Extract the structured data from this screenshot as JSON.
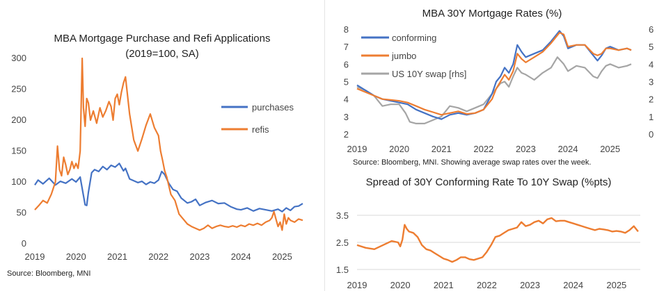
{
  "chart_data": [
    {
      "type": "line",
      "title": "MBA Mortgage Purchase and Refi Applications",
      "subtitle": "(2019=100, SA)",
      "x_ticks": [
        "2019",
        "2020",
        "2021",
        "2022",
        "2023",
        "2024",
        "2025"
      ],
      "y_ticks": [
        "0",
        "50",
        "100",
        "150",
        "200",
        "250",
        "300"
      ],
      "ylim": [
        0,
        300
      ],
      "xlim": [
        2019.0,
        2025.55
      ],
      "grid": false,
      "legend": "right",
      "note": "Source: Bloomberg, MNI",
      "series": [
        {
          "name": "purchases",
          "color": "#4472C4",
          "x": [
            2019.0,
            2019.08,
            2019.2,
            2019.35,
            2019.5,
            2019.62,
            2019.75,
            2019.9,
            2020.0,
            2020.1,
            2020.18,
            2020.22,
            2020.26,
            2020.3,
            2020.38,
            2020.45,
            2020.55,
            2020.65,
            2020.75,
            2020.85,
            2020.95,
            2021.05,
            2021.15,
            2021.2,
            2021.3,
            2021.4,
            2021.5,
            2021.6,
            2021.7,
            2021.8,
            2021.9,
            2022.0,
            2022.08,
            2022.15,
            2022.25,
            2022.35,
            2022.45,
            2022.55,
            2022.7,
            2022.8,
            2022.9,
            2023.0,
            2023.15,
            2023.3,
            2023.45,
            2023.6,
            2023.75,
            2023.9,
            2024.0,
            2024.15,
            2024.3,
            2024.45,
            2024.6,
            2024.75,
            2024.9,
            2025.0,
            2025.1,
            2025.2,
            2025.3,
            2025.4,
            2025.5
          ],
          "values": [
            95,
            103,
            97,
            106,
            95,
            101,
            98,
            105,
            100,
            108,
            78,
            63,
            62,
            83,
            115,
            120,
            117,
            125,
            120,
            127,
            124,
            130,
            118,
            122,
            105,
            102,
            99,
            101,
            96,
            100,
            98,
            103,
            117,
            112,
            98,
            88,
            85,
            74,
            66,
            68,
            72,
            62,
            67,
            70,
            65,
            66,
            60,
            56,
            55,
            58,
            53,
            57,
            55,
            53,
            56,
            52,
            58,
            54,
            60,
            61,
            65
          ]
        },
        {
          "name": "refis",
          "color": "#ED7D31",
          "x": [
            2019.0,
            2019.1,
            2019.2,
            2019.3,
            2019.4,
            2019.5,
            2019.55,
            2019.6,
            2019.65,
            2019.7,
            2019.75,
            2019.8,
            2019.85,
            2019.9,
            2019.95,
            2020.0,
            2020.05,
            2020.1,
            2020.15,
            2020.18,
            2020.22,
            2020.26,
            2020.3,
            2020.35,
            2020.42,
            2020.5,
            2020.58,
            2020.65,
            2020.72,
            2020.8,
            2020.85,
            2020.9,
            2020.95,
            2021.0,
            2021.05,
            2021.1,
            2021.15,
            2021.2,
            2021.3,
            2021.4,
            2021.5,
            2021.6,
            2021.7,
            2021.8,
            2021.9,
            2022.0,
            2022.05,
            2022.1,
            2022.15,
            2022.2,
            2022.3,
            2022.4,
            2022.5,
            2022.6,
            2022.7,
            2022.8,
            2022.9,
            2023.0,
            2023.1,
            2023.2,
            2023.3,
            2023.4,
            2023.5,
            2023.6,
            2023.7,
            2023.8,
            2023.9,
            2024.0,
            2024.1,
            2024.2,
            2024.3,
            2024.4,
            2024.5,
            2024.6,
            2024.7,
            2024.75,
            2024.8,
            2024.85,
            2024.9,
            2024.95,
            2025.0,
            2025.05,
            2025.1,
            2025.15,
            2025.2,
            2025.3,
            2025.4,
            2025.5
          ],
          "values": [
            55,
            62,
            70,
            66,
            80,
            100,
            158,
            120,
            110,
            140,
            128,
            112,
            120,
            133,
            122,
            130,
            122,
            150,
            300,
            220,
            190,
            235,
            228,
            200,
            215,
            195,
            220,
            205,
            215,
            230,
            222,
            200,
            235,
            242,
            225,
            245,
            260,
            270,
            210,
            168,
            150,
            170,
            192,
            210,
            188,
            175,
            150,
            135,
            118,
            108,
            80,
            70,
            48,
            40,
            32,
            28,
            25,
            22,
            25,
            30,
            25,
            28,
            30,
            28,
            27,
            29,
            27,
            30,
            28,
            32,
            30,
            33,
            30,
            35,
            38,
            42,
            52,
            40,
            28,
            35,
            22,
            48,
            32,
            42,
            38,
            35,
            40,
            38
          ]
        }
      ]
    },
    {
      "type": "line",
      "title": "MBA 30Y Mortgage Rates (%)",
      "x_ticks": [
        "2019",
        "2020",
        "2021",
        "2022",
        "2023",
        "2024",
        "2025"
      ],
      "y_ticks_left": [
        "2",
        "3",
        "4",
        "5",
        "6",
        "7",
        "8"
      ],
      "y_ticks_right": [
        "0",
        "1",
        "2",
        "3",
        "4",
        "5",
        "6"
      ],
      "ylim_left": [
        2,
        8
      ],
      "ylim_right": [
        0,
        6
      ],
      "xlim": [
        2019.0,
        2025.55
      ],
      "grid": false,
      "legend": "top-left",
      "note": "Source: Bloomberg, MNI. Showing average swap rates over the week.",
      "series": [
        {
          "name": "conforming",
          "color": "#4472C4",
          "axis": "left",
          "x": [
            2019.0,
            2019.2,
            2019.4,
            2019.6,
            2019.8,
            2020.0,
            2020.2,
            2020.4,
            2020.6,
            2020.8,
            2021.0,
            2021.2,
            2021.4,
            2021.6,
            2021.8,
            2022.0,
            2022.2,
            2022.3,
            2022.4,
            2022.5,
            2022.6,
            2022.7,
            2022.8,
            2022.9,
            2023.0,
            2023.2,
            2023.4,
            2023.6,
            2023.8,
            2023.9,
            2024.0,
            2024.2,
            2024.4,
            2024.6,
            2024.7,
            2024.8,
            2024.9,
            2025.0,
            2025.2,
            2025.4,
            2025.5
          ],
          "values": [
            4.8,
            4.5,
            4.2,
            4.0,
            3.9,
            3.8,
            3.7,
            3.4,
            3.2,
            3.0,
            2.85,
            3.1,
            3.2,
            3.1,
            3.2,
            3.4,
            4.3,
            5.0,
            5.3,
            5.8,
            5.5,
            6.0,
            7.1,
            6.7,
            6.4,
            6.6,
            6.8,
            7.3,
            7.9,
            7.6,
            6.9,
            7.1,
            7.1,
            6.5,
            6.2,
            6.5,
            6.9,
            7.0,
            6.8,
            6.9,
            6.8
          ]
        },
        {
          "name": "jumbo",
          "color": "#ED7D31",
          "axis": "left",
          "x": [
            2019.0,
            2019.2,
            2019.4,
            2019.6,
            2019.8,
            2020.0,
            2020.2,
            2020.4,
            2020.6,
            2020.8,
            2021.0,
            2021.2,
            2021.4,
            2021.6,
            2021.8,
            2022.0,
            2022.2,
            2022.3,
            2022.4,
            2022.5,
            2022.6,
            2022.7,
            2022.8,
            2022.9,
            2023.0,
            2023.2,
            2023.4,
            2023.6,
            2023.8,
            2023.9,
            2024.0,
            2024.2,
            2024.4,
            2024.6,
            2024.7,
            2024.8,
            2024.9,
            2025.0,
            2025.2,
            2025.4,
            2025.5
          ],
          "values": [
            4.6,
            4.4,
            4.2,
            4.0,
            3.95,
            3.9,
            3.8,
            3.6,
            3.4,
            3.25,
            3.1,
            3.2,
            3.3,
            3.15,
            3.2,
            3.4,
            4.0,
            4.6,
            5.0,
            5.4,
            5.1,
            5.6,
            6.6,
            6.3,
            6.1,
            6.4,
            6.7,
            7.2,
            7.8,
            7.7,
            7.0,
            7.1,
            7.1,
            6.6,
            6.5,
            6.6,
            6.9,
            6.9,
            6.8,
            6.9,
            6.8
          ]
        },
        {
          "name": "US 10Y swap [rhs]",
          "color": "#A5A5A5",
          "axis": "right",
          "x": [
            2019.0,
            2019.2,
            2019.4,
            2019.6,
            2019.8,
            2020.0,
            2020.15,
            2020.25,
            2020.4,
            2020.6,
            2020.8,
            2021.0,
            2021.2,
            2021.4,
            2021.6,
            2021.8,
            2022.0,
            2022.2,
            2022.4,
            2022.5,
            2022.6,
            2022.7,
            2022.8,
            2022.9,
            2023.0,
            2023.2,
            2023.4,
            2023.6,
            2023.75,
            2023.9,
            2024.0,
            2024.2,
            2024.4,
            2024.6,
            2024.7,
            2024.8,
            2024.9,
            2025.0,
            2025.2,
            2025.4,
            2025.5
          ],
          "values": [
            2.7,
            2.5,
            2.2,
            1.6,
            1.7,
            1.7,
            1.2,
            0.7,
            0.6,
            0.6,
            0.8,
            1.0,
            1.6,
            1.5,
            1.3,
            1.5,
            1.7,
            2.3,
            2.9,
            3.0,
            2.7,
            3.3,
            3.8,
            3.5,
            3.4,
            3.1,
            3.5,
            3.8,
            4.4,
            4.0,
            3.6,
            3.9,
            3.8,
            3.3,
            3.2,
            3.6,
            3.9,
            4.0,
            3.8,
            3.9,
            4.0
          ]
        }
      ]
    },
    {
      "type": "line",
      "title": "Spread of 30Y Conforming Rate To 10Y Swap (%pts)",
      "x_ticks": [
        "2019",
        "2020",
        "2021",
        "2022",
        "2023",
        "2024",
        "2025"
      ],
      "y_ticks": [
        "1.5",
        "2.5",
        "3.5"
      ],
      "ylim": [
        1.5,
        3.5
      ],
      "xlim": [
        2019.0,
        2025.55
      ],
      "grid": true,
      "series": [
        {
          "name": "",
          "color": "#ED7D31",
          "x": [
            2019.0,
            2019.2,
            2019.4,
            2019.6,
            2019.8,
            2019.95,
            2020.0,
            2020.05,
            2020.1,
            2020.15,
            2020.2,
            2020.3,
            2020.4,
            2020.5,
            2020.6,
            2020.7,
            2020.8,
            2020.9,
            2021.0,
            2021.1,
            2021.2,
            2021.3,
            2021.4,
            2021.5,
            2021.6,
            2021.7,
            2021.8,
            2021.9,
            2022.0,
            2022.1,
            2022.2,
            2022.3,
            2022.4,
            2022.5,
            2022.6,
            2022.7,
            2022.8,
            2022.9,
            2023.0,
            2023.1,
            2023.2,
            2023.3,
            2023.4,
            2023.5,
            2023.6,
            2023.7,
            2023.8,
            2023.9,
            2024.0,
            2024.1,
            2024.2,
            2024.3,
            2024.4,
            2024.5,
            2024.6,
            2024.7,
            2024.8,
            2024.9,
            2025.0,
            2025.1,
            2025.2,
            2025.3,
            2025.4,
            2025.5
          ],
          "values": [
            2.4,
            2.3,
            2.25,
            2.4,
            2.55,
            2.5,
            2.35,
            2.6,
            3.15,
            3.0,
            2.9,
            2.85,
            2.7,
            2.4,
            2.25,
            2.2,
            2.1,
            2.0,
            1.9,
            1.85,
            1.78,
            1.85,
            1.95,
            1.95,
            1.88,
            1.85,
            1.9,
            1.95,
            2.15,
            2.4,
            2.7,
            2.75,
            2.85,
            2.95,
            3.0,
            3.05,
            3.25,
            3.1,
            3.15,
            3.25,
            3.3,
            3.2,
            3.35,
            3.4,
            3.28,
            3.3,
            3.3,
            3.25,
            3.2,
            3.15,
            3.1,
            3.05,
            3.0,
            2.95,
            3.0,
            2.98,
            2.95,
            2.9,
            2.92,
            2.9,
            2.85,
            2.95,
            3.1,
            2.9
          ]
        }
      ]
    }
  ]
}
